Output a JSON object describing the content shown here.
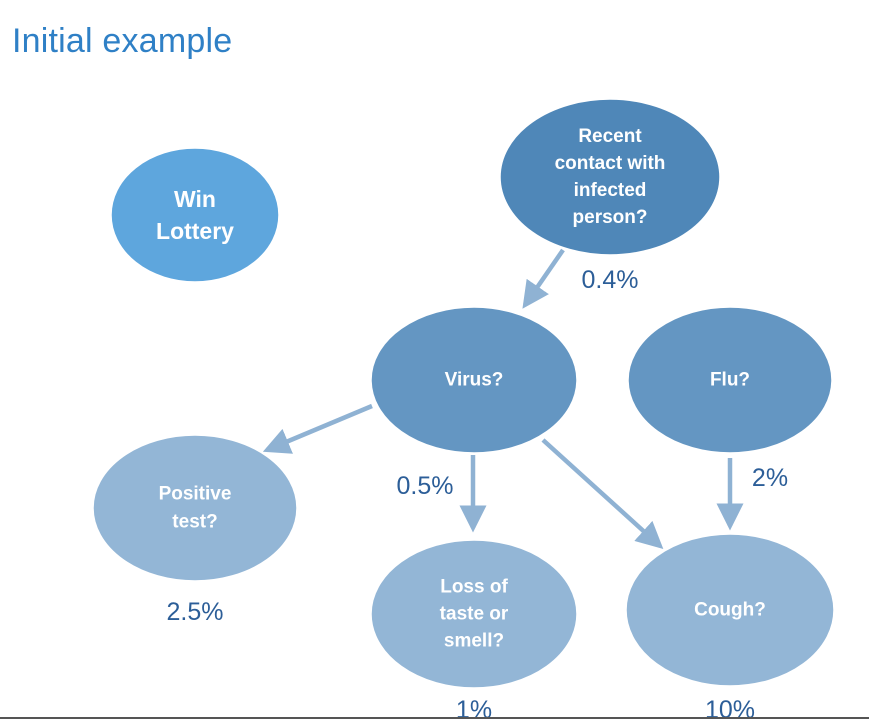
{
  "title": "Initial example",
  "colors": {
    "title": "#2f80c6",
    "node_bright": "#5ea6dd",
    "node_dark": "#4f87b8",
    "node_mid": "#6496c2",
    "node_light": "#93b6d6",
    "edge": "#8fb2d3",
    "probability_text": "#2c5e98"
  },
  "nodes": [
    {
      "id": "win-lottery",
      "lines": [
        "Win",
        "Lottery"
      ]
    },
    {
      "id": "recent-contact",
      "lines": [
        "Recent",
        "contact with",
        "infected",
        "person?"
      ]
    },
    {
      "id": "virus",
      "lines": [
        "Virus?"
      ]
    },
    {
      "id": "flu",
      "lines": [
        "Flu?"
      ]
    },
    {
      "id": "positive-test",
      "lines": [
        "Positive",
        "test?"
      ]
    },
    {
      "id": "loss-of-taste",
      "lines": [
        "Loss of",
        "taste or",
        "smell?"
      ]
    },
    {
      "id": "cough",
      "lines": [
        "Cough?"
      ]
    }
  ],
  "edges": [
    {
      "from": "recent-contact",
      "to": "virus"
    },
    {
      "from": "virus",
      "to": "positive-test"
    },
    {
      "from": "virus",
      "to": "loss-of-taste"
    },
    {
      "from": "virus",
      "to": "cough"
    },
    {
      "from": "flu",
      "to": "cough"
    }
  ],
  "probabilities": [
    {
      "id": "prob-recent-contact",
      "text": "0.4%"
    },
    {
      "id": "prob-virus",
      "text": "0.5%"
    },
    {
      "id": "prob-flu",
      "text": "2%"
    },
    {
      "id": "prob-positive-test",
      "text": "2.5%"
    },
    {
      "id": "prob-loss-of-taste",
      "text": "1%"
    },
    {
      "id": "prob-cough",
      "text": "10%"
    }
  ]
}
